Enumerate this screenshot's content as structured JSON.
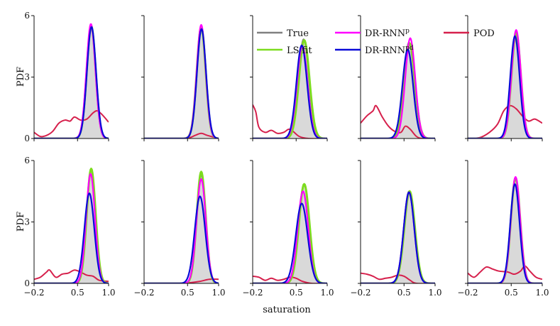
{
  "chart_data": {
    "type": "line",
    "layout": "2x5 grid of density panels",
    "xlabel": "saturation",
    "ylabel": "PDF",
    "xlim": [
      -0.2,
      1.0
    ],
    "ylim": [
      0,
      6
    ],
    "x_ticks": [
      -0.2,
      0.5,
      1.0
    ],
    "x_tick_labels": [
      "−0.2",
      "0.5",
      "1.0"
    ],
    "y_ticks": [
      0,
      3,
      6
    ],
    "y_tick_labels": [
      "0",
      "3",
      "6"
    ],
    "legend_entries": [
      {
        "key": "true",
        "label": "True",
        "color": "#808080"
      },
      {
        "key": "ls",
        "label": "LS fit",
        "color": "#7ddc1f"
      },
      {
        "key": "p",
        "label": "DR-RNN",
        "sup": "p",
        "color": "#ff00ff"
      },
      {
        "key": "pd",
        "label": "DR-RNN",
        "sup": "pd",
        "color": "#0a0ad8"
      },
      {
        "key": "pod",
        "label": "POD",
        "color": "#d6204c"
      }
    ],
    "panels": [
      {
        "row": 0,
        "col": 0,
        "true": {
          "mu": 0.72,
          "sd": 0.072,
          "peak": 5.55
        },
        "ls": {
          "mu": 0.72,
          "sd": 0.072,
          "peak": 5.5
        },
        "p": {
          "mu": 0.715,
          "sd": 0.072,
          "peak": 5.6
        },
        "pd": {
          "mu": 0.725,
          "sd": 0.073,
          "peak": 5.45
        },
        "pod": [
          [
            -0.2,
            0.3
          ],
          [
            -0.1,
            0.1
          ],
          [
            0.0,
            0.15
          ],
          [
            0.1,
            0.35
          ],
          [
            0.2,
            0.75
          ],
          [
            0.3,
            0.9
          ],
          [
            0.38,
            0.85
          ],
          [
            0.45,
            1.05
          ],
          [
            0.55,
            0.9
          ],
          [
            0.65,
            0.95
          ],
          [
            0.75,
            1.25
          ],
          [
            0.82,
            1.35
          ],
          [
            0.9,
            1.15
          ],
          [
            1.0,
            0.8
          ]
        ]
      },
      {
        "row": 0,
        "col": 1,
        "true": {
          "mu": 0.72,
          "sd": 0.072,
          "peak": 5.5
        },
        "ls": {
          "mu": 0.72,
          "sd": 0.072,
          "peak": 5.45
        },
        "p": {
          "mu": 0.72,
          "sd": 0.072,
          "peak": 5.55
        },
        "pd": {
          "mu": 0.725,
          "sd": 0.073,
          "peak": 5.35
        },
        "pod": [
          [
            -0.2,
            0.0
          ],
          [
            0.2,
            0.0
          ],
          [
            0.5,
            0.02
          ],
          [
            0.62,
            0.15
          ],
          [
            0.72,
            0.25
          ],
          [
            0.82,
            0.15
          ],
          [
            1.0,
            0.0
          ]
        ]
      },
      {
        "row": 0,
        "col": 2,
        "true": {
          "mu": 0.62,
          "sd": 0.085,
          "peak": 4.85
        },
        "ls": {
          "mu": 0.63,
          "sd": 0.085,
          "peak": 4.8
        },
        "p": {
          "mu": 0.6,
          "sd": 0.085,
          "peak": 4.5
        },
        "pd": {
          "mu": 0.59,
          "sd": 0.085,
          "peak": 4.55
        },
        "pod": [
          [
            -0.2,
            1.65
          ],
          [
            -0.15,
            1.3
          ],
          [
            -0.1,
            0.55
          ],
          [
            0.0,
            0.3
          ],
          [
            0.1,
            0.4
          ],
          [
            0.2,
            0.25
          ],
          [
            0.3,
            0.3
          ],
          [
            0.38,
            0.45
          ],
          [
            0.45,
            0.35
          ],
          [
            0.55,
            0.1
          ],
          [
            0.7,
            0.0
          ],
          [
            1.0,
            0.0
          ]
        ]
      },
      {
        "row": 0,
        "col": 3,
        "true": {
          "mu": 0.58,
          "sd": 0.085,
          "peak": 4.7
        },
        "ls": {
          "mu": 0.59,
          "sd": 0.085,
          "peak": 4.65
        },
        "p": {
          "mu": 0.6,
          "sd": 0.08,
          "peak": 4.9
        },
        "pd": {
          "mu": 0.56,
          "sd": 0.085,
          "peak": 4.35
        },
        "pod": [
          [
            -0.2,
            0.75
          ],
          [
            -0.1,
            1.1
          ],
          [
            0.0,
            1.35
          ],
          [
            0.05,
            1.6
          ],
          [
            0.15,
            1.05
          ],
          [
            0.25,
            0.6
          ],
          [
            0.35,
            0.35
          ],
          [
            0.45,
            0.3
          ],
          [
            0.52,
            0.6
          ],
          [
            0.6,
            0.45
          ],
          [
            0.7,
            0.1
          ],
          [
            0.8,
            0.0
          ],
          [
            1.0,
            0.0
          ]
        ]
      },
      {
        "row": 0,
        "col": 4,
        "true": {
          "mu": 0.58,
          "sd": 0.075,
          "peak": 5.2
        },
        "ls": {
          "mu": 0.58,
          "sd": 0.075,
          "peak": 5.15
        },
        "p": {
          "mu": 0.58,
          "sd": 0.075,
          "peak": 5.3
        },
        "pd": {
          "mu": 0.56,
          "sd": 0.075,
          "peak": 5.0
        },
        "pod": [
          [
            -0.2,
            0.0
          ],
          [
            0.0,
            0.05
          ],
          [
            0.15,
            0.3
          ],
          [
            0.28,
            0.7
          ],
          [
            0.38,
            1.35
          ],
          [
            0.48,
            1.6
          ],
          [
            0.58,
            1.45
          ],
          [
            0.68,
            1.1
          ],
          [
            0.78,
            0.85
          ],
          [
            0.88,
            0.95
          ],
          [
            1.0,
            0.75
          ]
        ]
      },
      {
        "row": 1,
        "col": 0,
        "true": {
          "mu": 0.72,
          "sd": 0.072,
          "peak": 5.55
        },
        "ls": {
          "mu": 0.72,
          "sd": 0.072,
          "peak": 5.6
        },
        "p": {
          "mu": 0.71,
          "sd": 0.072,
          "peak": 5.35
        },
        "pd": {
          "mu": 0.69,
          "sd": 0.08,
          "peak": 4.4
        },
        "pod": [
          [
            -0.2,
            0.2
          ],
          [
            -0.1,
            0.3
          ],
          [
            0.0,
            0.55
          ],
          [
            0.05,
            0.65
          ],
          [
            0.15,
            0.3
          ],
          [
            0.25,
            0.45
          ],
          [
            0.35,
            0.5
          ],
          [
            0.45,
            0.65
          ],
          [
            0.55,
            0.55
          ],
          [
            0.65,
            0.4
          ],
          [
            0.75,
            0.35
          ],
          [
            0.85,
            0.15
          ],
          [
            1.0,
            0.1
          ]
        ]
      },
      {
        "row": 1,
        "col": 1,
        "true": {
          "mu": 0.72,
          "sd": 0.072,
          "peak": 5.3
        },
        "ls": {
          "mu": 0.72,
          "sd": 0.072,
          "peak": 5.45
        },
        "p": {
          "mu": 0.72,
          "sd": 0.075,
          "peak": 5.1
        },
        "pd": {
          "mu": 0.7,
          "sd": 0.085,
          "peak": 4.25
        },
        "pod": [
          [
            -0.2,
            0.0
          ],
          [
            0.3,
            0.0
          ],
          [
            0.5,
            0.02
          ],
          [
            0.7,
            0.1
          ],
          [
            0.85,
            0.2
          ],
          [
            1.0,
            0.2
          ]
        ]
      },
      {
        "row": 1,
        "col": 2,
        "true": {
          "mu": 0.63,
          "sd": 0.085,
          "peak": 4.8
        },
        "ls": {
          "mu": 0.63,
          "sd": 0.085,
          "peak": 4.85
        },
        "p": {
          "mu": 0.61,
          "sd": 0.085,
          "peak": 4.5
        },
        "pd": {
          "mu": 0.59,
          "sd": 0.095,
          "peak": 3.9
        },
        "pod": [
          [
            -0.2,
            0.35
          ],
          [
            -0.1,
            0.3
          ],
          [
            0.0,
            0.15
          ],
          [
            0.1,
            0.25
          ],
          [
            0.2,
            0.15
          ],
          [
            0.3,
            0.2
          ],
          [
            0.4,
            0.3
          ],
          [
            0.5,
            0.25
          ],
          [
            0.6,
            0.1
          ],
          [
            0.75,
            0.0
          ],
          [
            1.0,
            0.0
          ]
        ]
      },
      {
        "row": 1,
        "col": 3,
        "true": {
          "mu": 0.58,
          "sd": 0.085,
          "peak": 4.5
        },
        "ls": {
          "mu": 0.59,
          "sd": 0.085,
          "peak": 4.5
        },
        "p": {
          "mu": 0.58,
          "sd": 0.085,
          "peak": 4.45
        },
        "pd": {
          "mu": 0.58,
          "sd": 0.085,
          "peak": 4.45
        },
        "pod": [
          [
            -0.2,
            0.5
          ],
          [
            -0.1,
            0.45
          ],
          [
            0.0,
            0.35
          ],
          [
            0.1,
            0.2
          ],
          [
            0.2,
            0.25
          ],
          [
            0.3,
            0.3
          ],
          [
            0.4,
            0.4
          ],
          [
            0.5,
            0.35
          ],
          [
            0.6,
            0.15
          ],
          [
            0.7,
            0.0
          ],
          [
            1.0,
            0.0
          ]
        ]
      },
      {
        "row": 1,
        "col": 4,
        "true": {
          "mu": 0.57,
          "sd": 0.075,
          "peak": 5.1
        },
        "ls": {
          "mu": 0.57,
          "sd": 0.075,
          "peak": 5.15
        },
        "p": {
          "mu": 0.57,
          "sd": 0.075,
          "peak": 5.2
        },
        "pd": {
          "mu": 0.56,
          "sd": 0.075,
          "peak": 4.85
        },
        "pod": [
          [
            -0.2,
            0.5
          ],
          [
            -0.1,
            0.3
          ],
          [
            0.0,
            0.55
          ],
          [
            0.1,
            0.8
          ],
          [
            0.2,
            0.7
          ],
          [
            0.3,
            0.6
          ],
          [
            0.45,
            0.55
          ],
          [
            0.55,
            0.45
          ],
          [
            0.65,
            0.6
          ],
          [
            0.72,
            0.85
          ],
          [
            0.8,
            0.6
          ],
          [
            0.9,
            0.3
          ],
          [
            1.0,
            0.2
          ]
        ]
      }
    ]
  }
}
